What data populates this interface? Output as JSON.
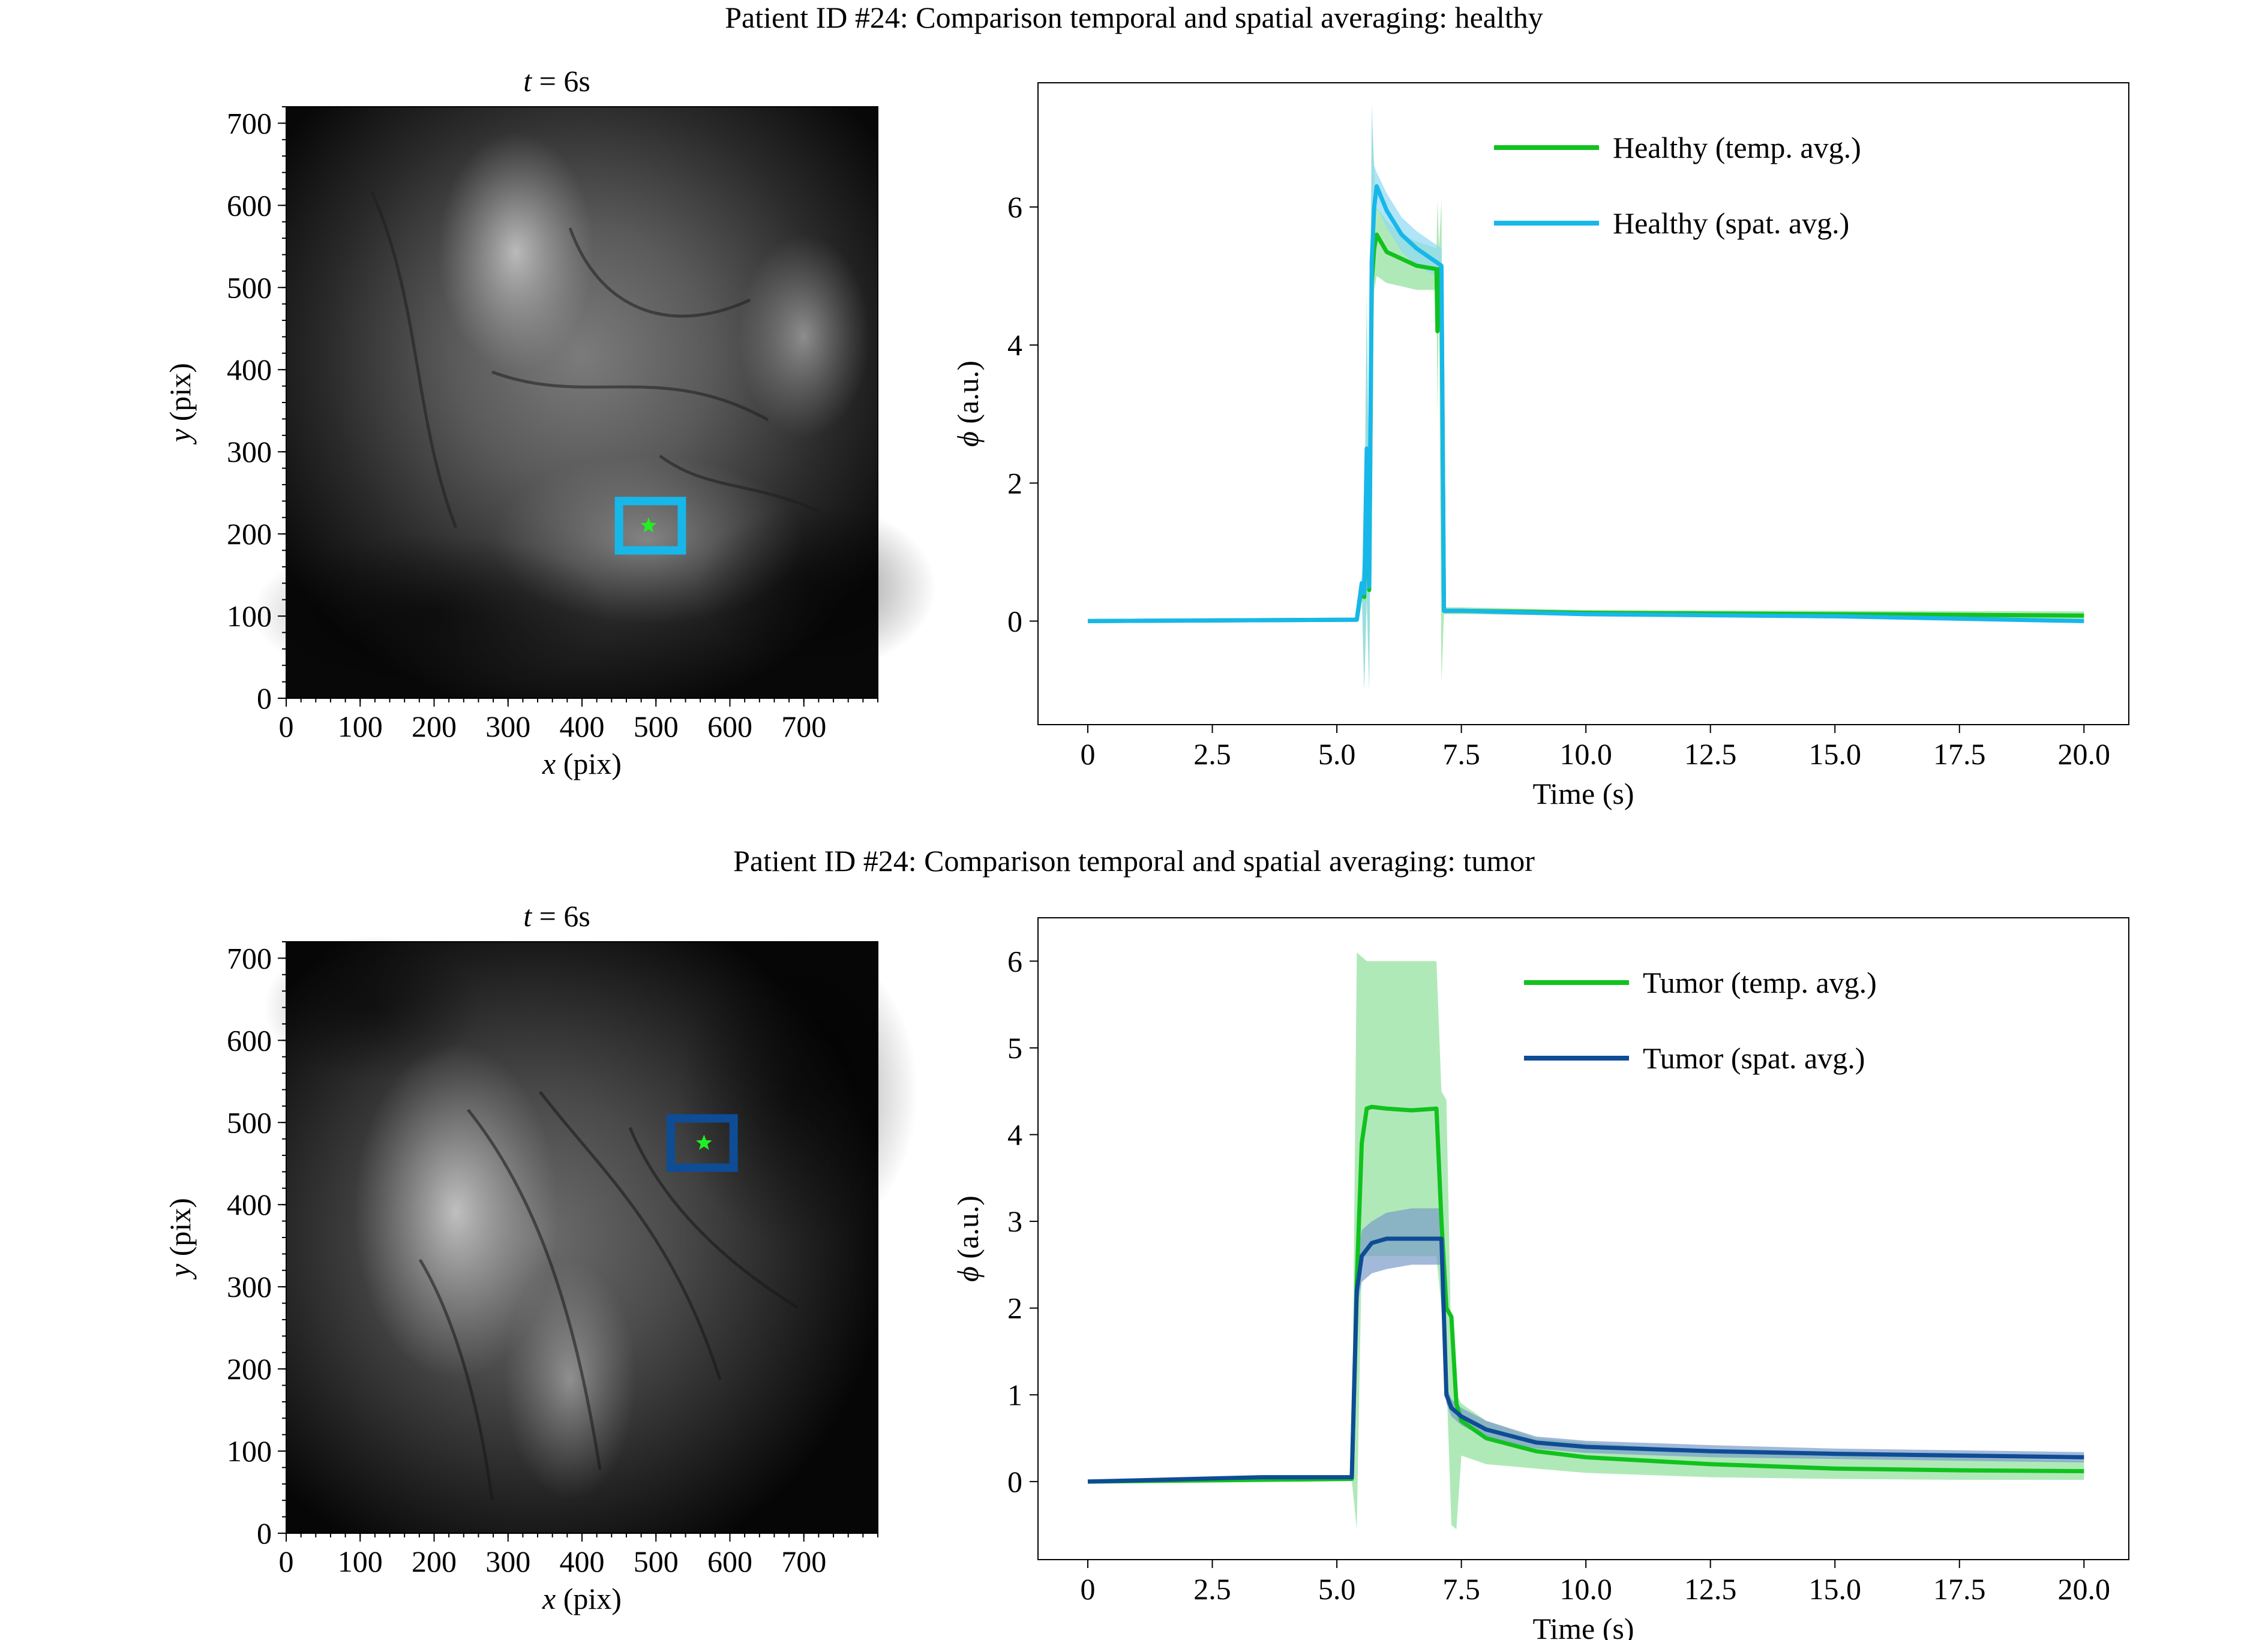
{
  "figure": {
    "titles": [
      "Patient ID #24: Comparison temporal and spatial averaging: healthy",
      "Patient ID #24: Comparison temporal and spatial averaging: tumor"
    ]
  },
  "colors": {
    "temp": "#11c21e",
    "temp_band": "#8fe09a",
    "healthy_spat": "#17b7ea",
    "healthy_spat_band": "#8fd8f3",
    "tumor_spat": "#0e4c95",
    "tumor_spat_band": "#7a9bc9",
    "marker": "#22ee22"
  },
  "chart_data": [
    {
      "type": "image",
      "title_italic": "t",
      "title_rest": " = 6s",
      "xlabel_italic": "x",
      "xlabel_rest": " (pix)",
      "ylabel_italic": "y",
      "ylabel_rest": " (pix)",
      "xlim": [
        0,
        800
      ],
      "ylim": [
        0,
        720
      ],
      "xticks": [
        0,
        100,
        200,
        300,
        400,
        500,
        600,
        700
      ],
      "yticks": [
        0,
        100,
        200,
        300,
        400,
        500,
        600,
        700
      ],
      "roi": {
        "x0": 450,
        "y0": 180,
        "x1": 535,
        "y1": 240
      },
      "marker_point": [
        490,
        210
      ],
      "roi_color": "#17b7ea"
    },
    {
      "type": "line",
      "xlabel": "Time (s)",
      "ylabel_italic": "ϕ",
      "ylabel_rest": " (a.u.)",
      "xlim": [
        -1,
        20.9
      ],
      "ylim": [
        -1.5,
        7.8
      ],
      "xticks": [
        0,
        2.5,
        5,
        7.5,
        10,
        12.5,
        15,
        17.5,
        20
      ],
      "xtick_labels": [
        "0",
        "2.5",
        "5.0",
        "7.5",
        "10.0",
        "12.5",
        "15.0",
        "17.5",
        "20.0"
      ],
      "yticks": [
        0,
        2,
        4,
        6
      ],
      "ytick_labels": [
        "0",
        "2",
        "4",
        "6"
      ],
      "legend_position": "top-center",
      "series": [
        {
          "name": "Healthy (temp. avg.)",
          "color": "#11c21e",
          "band_color": "#8fe09a",
          "x": [
            0,
            5.4,
            5.5,
            5.55,
            5.6,
            5.65,
            5.7,
            5.75,
            5.8,
            6.0,
            6.3,
            6.6,
            7.0,
            7.02,
            7.05,
            7.1,
            7.15,
            7.5,
            10,
            15,
            20
          ],
          "y": [
            0,
            0.02,
            0.5,
            0.35,
            2.2,
            0.45,
            4.9,
            5.4,
            5.6,
            5.35,
            5.25,
            5.15,
            5.1,
            4.2,
            5.1,
            5.0,
            0.15,
            0.15,
            0.12,
            0.1,
            0.08
          ],
          "lower": [
            0,
            0.01,
            0.4,
            -1.0,
            0.3,
            -1.0,
            3.5,
            4.8,
            5.0,
            4.9,
            4.85,
            4.8,
            4.8,
            3.0,
            4.8,
            -0.9,
            0.1,
            0.1,
            0.08,
            0.05,
            0.03
          ],
          "upper": [
            0,
            0.03,
            0.6,
            1.2,
            4.5,
            1.5,
            7.2,
            6.5,
            6.0,
            5.8,
            5.6,
            5.5,
            5.4,
            6.1,
            5.4,
            6.1,
            0.2,
            0.2,
            0.16,
            0.15,
            0.14
          ]
        },
        {
          "name": "Healthy (spat. avg.)",
          "color": "#17b7ea",
          "band_color": "#8fd8f3",
          "x": [
            0,
            5.4,
            5.5,
            5.55,
            5.6,
            5.65,
            5.7,
            5.75,
            5.8,
            6.0,
            6.3,
            6.6,
            7.0,
            7.1,
            7.15,
            7.5,
            10,
            15,
            20
          ],
          "y": [
            0,
            0.02,
            0.55,
            0.4,
            2.5,
            0.5,
            5.2,
            6.0,
            6.3,
            5.95,
            5.6,
            5.4,
            5.2,
            5.15,
            0.15,
            0.15,
            0.1,
            0.07,
            0.0
          ],
          "lower": [
            0,
            0.01,
            0.45,
            -1.0,
            0.5,
            -1.0,
            4.0,
            5.6,
            6.0,
            5.7,
            5.35,
            5.15,
            5.0,
            5.0,
            0.12,
            0.12,
            0.07,
            0.04,
            -0.03
          ],
          "upper": [
            0,
            0.03,
            0.65,
            1.0,
            4.8,
            1.5,
            7.5,
            6.6,
            6.5,
            6.2,
            5.85,
            5.65,
            5.45,
            5.4,
            0.18,
            0.18,
            0.13,
            0.1,
            0.03
          ]
        }
      ]
    },
    {
      "type": "image",
      "title_italic": "t",
      "title_rest": " = 6s",
      "xlabel_italic": "x",
      "xlabel_rest": " (pix)",
      "ylabel_italic": "y",
      "ylabel_rest": " (pix)",
      "xlim": [
        0,
        800
      ],
      "ylim": [
        0,
        720
      ],
      "xticks": [
        0,
        100,
        200,
        300,
        400,
        500,
        600,
        700
      ],
      "yticks": [
        0,
        100,
        200,
        300,
        400,
        500,
        600,
        700
      ],
      "roi": {
        "x0": 520,
        "y0": 445,
        "x1": 605,
        "y1": 505
      },
      "marker_point": [
        565,
        475
      ],
      "roi_color": "#0e4c95"
    },
    {
      "type": "line",
      "xlabel": "Time (s)",
      "ylabel_italic": "ϕ",
      "ylabel_rest": " (a.u.)",
      "xlim": [
        -1,
        20.9
      ],
      "ylim": [
        -0.9,
        6.5
      ],
      "xticks": [
        0,
        2.5,
        5,
        7.5,
        10,
        12.5,
        15,
        17.5,
        20
      ],
      "xtick_labels": [
        "0",
        "2.5",
        "5.0",
        "7.5",
        "10.0",
        "12.5",
        "15.0",
        "17.5",
        "20.0"
      ],
      "yticks": [
        0,
        1,
        2,
        3,
        4,
        5,
        6
      ],
      "ytick_labels": [
        "0",
        "1",
        "2",
        "3",
        "4",
        "5",
        "6"
      ],
      "legend_position": "top-center",
      "series": [
        {
          "name": "Tumor (temp. avg.)",
          "color": "#11c21e",
          "band_color": "#8fe09a",
          "x": [
            0,
            3.5,
            5.3,
            5.4,
            5.5,
            5.6,
            5.7,
            6.0,
            6.5,
            7.0,
            7.1,
            7.2,
            7.3,
            7.4,
            7.5,
            8.0,
            9.0,
            10,
            12.5,
            15,
            17.5,
            20
          ],
          "y": [
            0,
            0.02,
            0.03,
            2.3,
            3.9,
            4.3,
            4.32,
            4.3,
            4.28,
            4.3,
            3.0,
            2.0,
            1.9,
            0.9,
            0.7,
            0.5,
            0.35,
            0.28,
            0.2,
            0.15,
            0.13,
            0.12
          ],
          "lower": [
            0,
            0.0,
            0.01,
            -0.55,
            2.6,
            2.6,
            2.6,
            2.6,
            2.6,
            2.6,
            2.0,
            1.2,
            -0.5,
            -0.55,
            0.3,
            0.2,
            0.15,
            0.1,
            0.05,
            0.03,
            0.02,
            0.02
          ],
          "upper": [
            0,
            0.04,
            0.05,
            6.1,
            6.05,
            6.0,
            6.0,
            6.0,
            6.0,
            6.0,
            4.5,
            4.4,
            1.5,
            1.0,
            0.9,
            0.7,
            0.5,
            0.45,
            0.35,
            0.3,
            0.27,
            0.24
          ]
        },
        {
          "name": "Tumor (spat. avg.)",
          "color": "#0e4c95",
          "band_color": "#7a9bc9",
          "x": [
            0,
            3.5,
            5.3,
            5.4,
            5.5,
            5.7,
            6.0,
            6.5,
            7.0,
            7.1,
            7.2,
            7.3,
            7.5,
            8.0,
            9.0,
            10,
            12.5,
            15,
            17.5,
            20
          ],
          "y": [
            0,
            0.05,
            0.05,
            2.2,
            2.6,
            2.75,
            2.8,
            2.8,
            2.8,
            2.8,
            1.0,
            0.85,
            0.75,
            0.6,
            0.45,
            0.4,
            0.35,
            0.32,
            0.3,
            0.28
          ],
          "lower": [
            0,
            0.03,
            0.03,
            2.0,
            2.3,
            2.4,
            2.45,
            2.5,
            2.5,
            2.5,
            0.9,
            0.75,
            0.65,
            0.5,
            0.38,
            0.33,
            0.28,
            0.26,
            0.24,
            0.22
          ],
          "upper": [
            0,
            0.07,
            0.07,
            2.5,
            2.9,
            3.0,
            3.1,
            3.15,
            3.15,
            3.15,
            1.1,
            0.95,
            0.85,
            0.7,
            0.52,
            0.47,
            0.42,
            0.38,
            0.36,
            0.34
          ]
        }
      ]
    }
  ]
}
